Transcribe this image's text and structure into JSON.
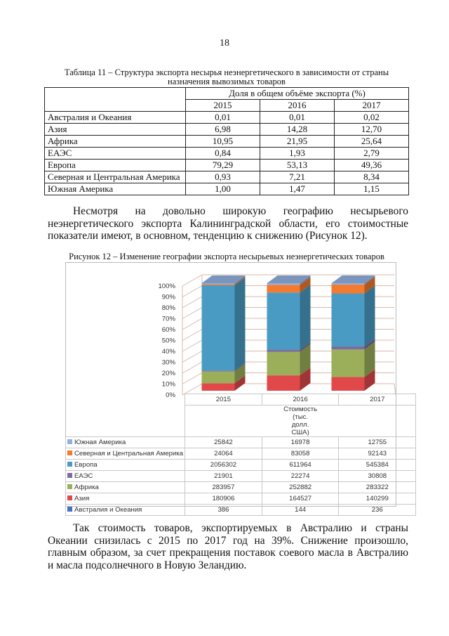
{
  "page_number": "18",
  "table11": {
    "caption": "Таблица 11 – Структура экспорта несырья неэнергетического в  зависимости от страны назначения вывозимых товаров",
    "group_header": "Доля в общем объёме экспорта (%)",
    "years": [
      "2015",
      "2016",
      "2017"
    ],
    "rows": [
      {
        "name": "Австралия и Океания",
        "values": [
          "0,01",
          "0,01",
          "0,02"
        ]
      },
      {
        "name": "Азия",
        "values": [
          "6,98",
          "14,28",
          "12,70"
        ]
      },
      {
        "name": "Африка",
        "values": [
          "10,95",
          "21,95",
          "25,64"
        ]
      },
      {
        "name": "ЕАЭС",
        "values": [
          "0,84",
          "1,93",
          "2,79"
        ]
      },
      {
        "name": "Европа",
        "values": [
          "79,29",
          "53,13",
          "49,36"
        ]
      },
      {
        "name": "Северная и Центральная Америка",
        "values": [
          "0,93",
          "7,21",
          "8,34"
        ]
      },
      {
        "name": "Южная Америка",
        "values": [
          "1,00",
          "1,47",
          "1,15"
        ]
      }
    ]
  },
  "paragraph1": "Несмотря на довольно широкую географию несырьевого неэнергетического экспорта Калининградской области, его стоимостные показатели имеют, в основном, тенденцию к снижению (Рисунок 12).",
  "figure_caption": "Рисунок 12 – Изменение географии экспорта несырьевых неэнергетических товаров",
  "chart_data": {
    "type": "bar",
    "stacked": "percent",
    "three_d": true,
    "categories": [
      "2015",
      "2016",
      "2017"
    ],
    "xlabel": "Стоимость (тыс. долл. США)",
    "yticks": [
      "0%",
      "10%",
      "20%",
      "30%",
      "40%",
      "50%",
      "60%",
      "70%",
      "80%",
      "90%",
      "100%"
    ],
    "ylim": [
      0,
      100
    ],
    "grid": true,
    "legend": "data-table",
    "series": [
      {
        "name": "Австралия и Океания",
        "color": "#4472C4",
        "values": [
          386,
          144,
          236
        ]
      },
      {
        "name": "Азия",
        "color": "#E0484A",
        "values": [
          180906,
          164527,
          140299
        ]
      },
      {
        "name": "Африка",
        "color": "#9BAF5A",
        "values": [
          283957,
          252882,
          283322
        ]
      },
      {
        "name": "ЕАЭС",
        "color": "#7B6BA0",
        "values": [
          21901,
          22274,
          30808
        ]
      },
      {
        "name": "Европа",
        "color": "#4A9BC4",
        "values": [
          2056302,
          611964,
          545384
        ]
      },
      {
        "name": "Северная и Центральная Америка",
        "color": "#F37A2E",
        "values": [
          24064,
          83058,
          92143
        ]
      },
      {
        "name": "Южная Америка",
        "color": "#8FB0E0",
        "values": [
          25842,
          16978,
          12755
        ]
      }
    ]
  },
  "paragraph2": "Так стоимость товаров, экспортируемых в Австралию и страны Океании снизилась с 2015 по 2017 год на 39%. Снижение произошло, главным образом, за счет прекращения поставок соевого масла в Австралию и масла подсолнечного в Новую Зеландию."
}
